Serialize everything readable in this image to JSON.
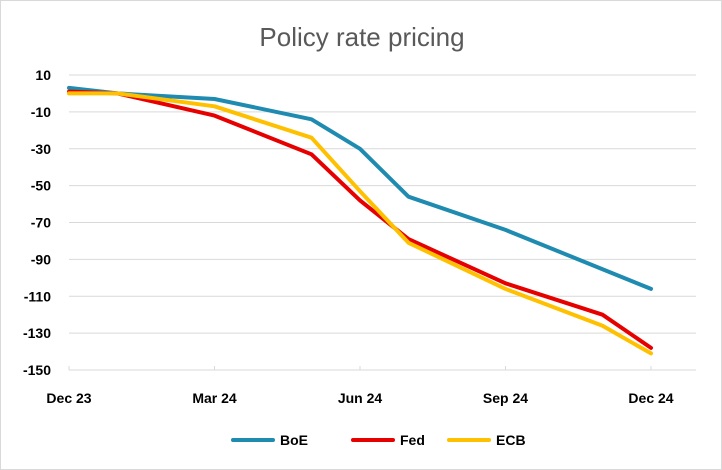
{
  "chart_data": {
    "type": "line",
    "title": "Policy rate pricing",
    "xlabel": "",
    "ylabel": "",
    "ylim": [
      -150,
      10
    ],
    "yticks": [
      10,
      -10,
      -30,
      -50,
      -70,
      -90,
      -110,
      -130,
      -150
    ],
    "x_tick_labels": [
      "Dec 23",
      "Mar 24",
      "Jun 24",
      "Sep 24",
      "Dec 24"
    ],
    "x_tick_positions": [
      0,
      3,
      6,
      9,
      12
    ],
    "grid": true,
    "legend_position": "bottom",
    "x": [
      0,
      1,
      2,
      3,
      4,
      5,
      6,
      7,
      8,
      9,
      10,
      11,
      12
    ],
    "series": [
      {
        "name": "BoE",
        "color": "#1f8bb0",
        "values": [
          3,
          0,
          null,
          -3,
          null,
          -14,
          -30,
          -56,
          null,
          -74,
          null,
          null,
          -106
        ],
        "x": [
          0,
          1,
          2,
          3,
          4,
          5,
          6,
          7,
          8,
          9,
          10,
          11,
          12
        ]
      },
      {
        "name": "Fed",
        "color": "#e60000",
        "values": [
          1,
          0,
          -12,
          -33,
          -58,
          -79,
          -103,
          -120,
          -138
        ],
        "x": [
          0,
          1,
          3,
          5,
          6,
          7,
          9,
          11,
          12
        ]
      },
      {
        "name": "ECB",
        "color": "#ffc000",
        "values": [
          0,
          0,
          -7,
          -24,
          -53,
          -81,
          -106,
          -126,
          -141
        ],
        "x": [
          0,
          1,
          3,
          5,
          6,
          7,
          9,
          11,
          12
        ]
      }
    ]
  }
}
